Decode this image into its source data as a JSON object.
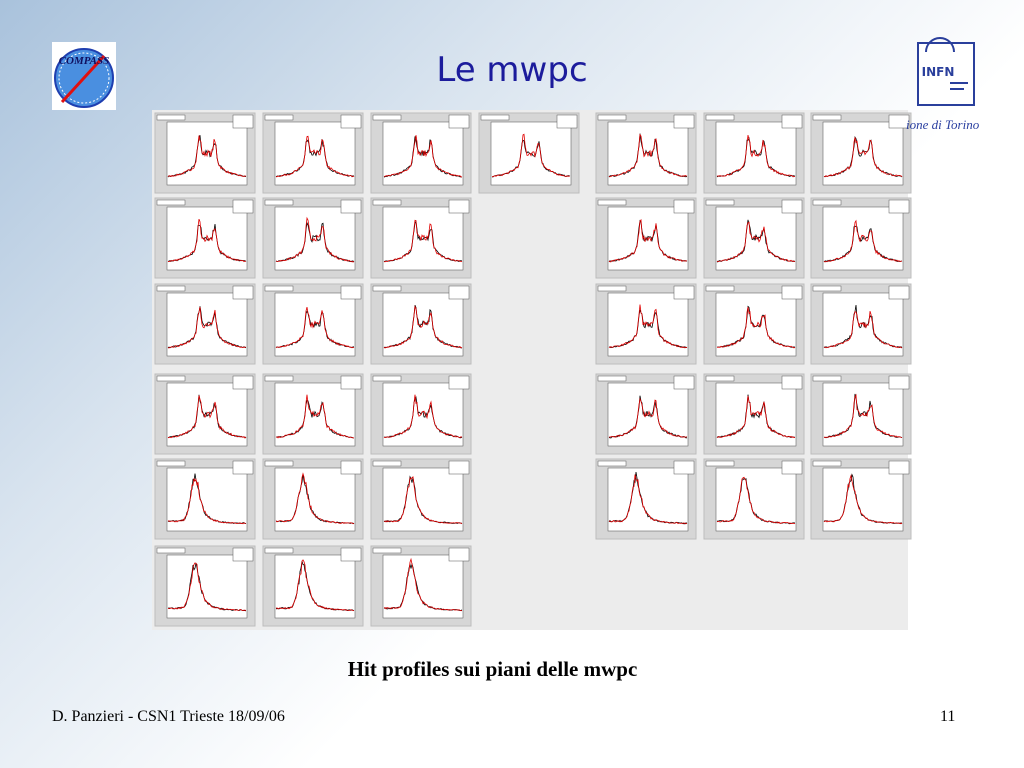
{
  "header": {
    "title": "Le mwpc",
    "logo_left": "COMPASS",
    "logo_right": "INFN",
    "affiliation": "ione di Torino"
  },
  "figure": {
    "caption": "Hit profiles sui piani delle mwpc"
  },
  "footer": {
    "author": "D. Panzieri - CSN1 Trieste 18/09/06",
    "page": "11"
  }
}
